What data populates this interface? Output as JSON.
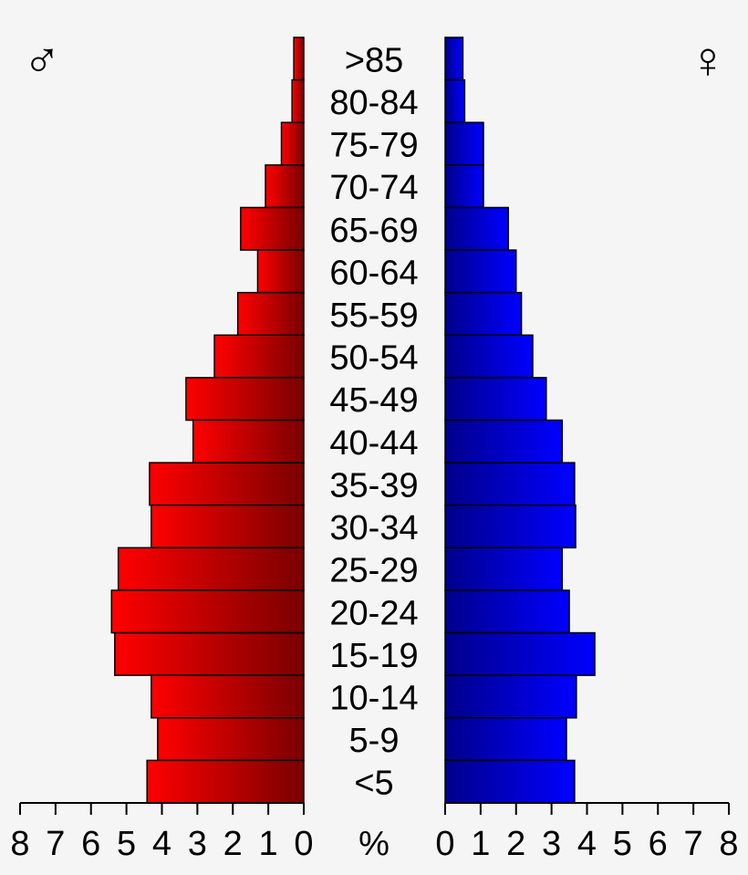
{
  "chart_data": {
    "type": "bar",
    "categories": [
      ">85",
      "80-84",
      "75-79",
      "70-74",
      "65-69",
      "60-64",
      "55-59",
      "50-54",
      "45-49",
      "40-44",
      "35-39",
      "30-34",
      "25-29",
      "20-24",
      "15-19",
      "10-14",
      "5-9",
      "<5"
    ],
    "series": [
      {
        "side": "male",
        "values": [
          0.28,
          0.33,
          0.63,
          1.08,
          1.78,
          1.3,
          1.86,
          2.52,
          3.32,
          3.12,
          4.35,
          4.3,
          5.23,
          5.42,
          5.33,
          4.3,
          4.12,
          4.42
        ]
      },
      {
        "side": "female",
        "values": [
          0.5,
          0.55,
          1.08,
          1.08,
          1.78,
          2.0,
          2.15,
          2.47,
          2.85,
          3.3,
          3.65,
          3.68,
          3.3,
          3.5,
          4.22,
          3.7,
          3.42,
          3.65
        ]
      }
    ],
    "male_symbol": "♂",
    "female_symbol": "♀",
    "unit_label": "%",
    "left_ticks": [
      "8",
      "7",
      "6",
      "5",
      "4",
      "3",
      "2",
      "1",
      "0"
    ],
    "right_ticks": [
      "0",
      "1",
      "2",
      "3",
      "4",
      "5",
      "6",
      "7",
      "8"
    ],
    "xlim": [
      0,
      8
    ]
  }
}
